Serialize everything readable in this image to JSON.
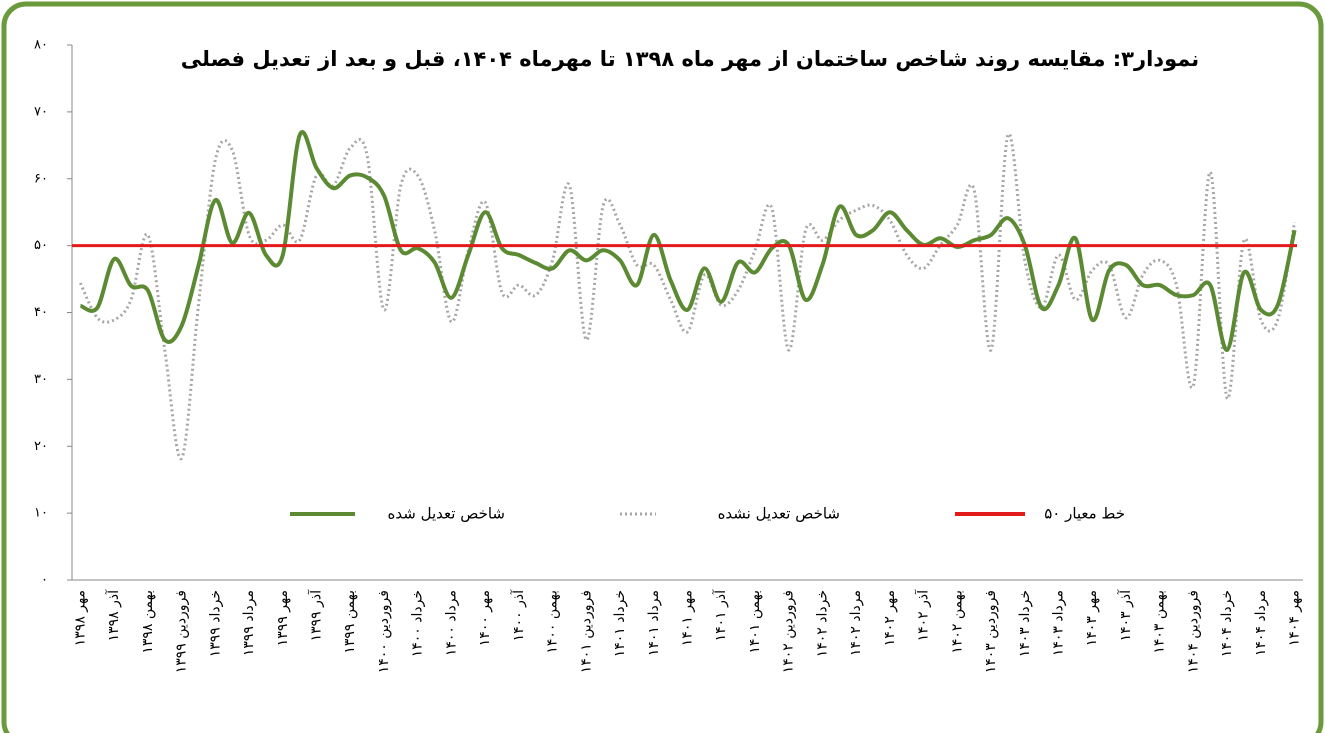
{
  "chart_data": {
    "type": "line",
    "title": "نمودار۳: مقایسه روند شاخص ساختمان از مهر ماه ۱۳۹۸ تا مهرماه ۱۴۰۴، قبل و بعد از تعدیل فصلی",
    "categories": [
      "مهر ۱۳۹۸",
      null,
      "آذر ۱۳۹۸",
      null,
      "بهمن ۱۳۹۸",
      null,
      "فروردین ۱۳۹۹",
      null,
      "خرداد ۱۳۹۹",
      null,
      "مرداد ۱۳۹۹",
      null,
      "مهر ۱۳۹۹",
      null,
      "آذر ۱۳۹۹",
      null,
      "بهمن ۱۳۹۹",
      null,
      "فروردین ۱۴۰۰",
      null,
      "خرداد ۱۴۰۰",
      null,
      "مرداد ۱۴۰۰",
      null,
      "مهر ۱۴۰۰",
      null,
      "آذر ۱۴۰۰",
      null,
      "بهمن ۱۴۰۰",
      null,
      "فروردین ۱۴۰۱",
      null,
      "خرداد ۱۴۰۱",
      null,
      "مرداد ۱۴۰۱",
      null,
      "مهر ۱۴۰۱",
      null,
      "آذر ۱۴۰۱",
      null,
      "بهمن ۱۴۰۱",
      null,
      "فروردین ۱۴۰۲",
      null,
      "خرداد ۱۴۰۲",
      null,
      "مرداد ۱۴۰۲",
      null,
      "مهر ۱۴۰۲",
      null,
      "آذر ۱۴۰۲",
      null,
      "بهمن ۱۴۰۲",
      null,
      "فروردین ۱۴۰۳",
      null,
      "خرداد ۱۴۰۳",
      null,
      "مرداد ۱۴۰۳",
      null,
      "مهر ۱۴۰۳",
      null,
      "آذر ۱۴۰۳",
      null,
      "بهمن ۱۴۰۳",
      null,
      "فروردین ۱۴۰۴",
      null,
      "خرداد ۱۴۰۴",
      null,
      "مرداد ۱۴۰۴",
      null,
      "مهر ۱۴۰۴"
    ],
    "series": [
      {
        "name": "شاخص تعدیل شده",
        "color": "#5b8a32",
        "style": "solid",
        "values": [
          41,
          40.7,
          48,
          44,
          43.3,
          35.9,
          38,
          47,
          56.8,
          50.4,
          54.9,
          48.6,
          48.6,
          66.5,
          61.6,
          58.6,
          60.5,
          60.2,
          57.5,
          49.3,
          49.6,
          47.5,
          42.2,
          48.6,
          55,
          49.6,
          48.6,
          47.4,
          46.6,
          49.3,
          47.8,
          49.3,
          47.8,
          44.1,
          51.6,
          44.8,
          40.4,
          46.6,
          41.6,
          47.5,
          46,
          49.6,
          50.1,
          41.9,
          47.1,
          55.8,
          51.6,
          52.3,
          55,
          52.3,
          50.1,
          51.1,
          49.8,
          50.8,
          51.6,
          54.1,
          50.1,
          40.7,
          44.1,
          51.1,
          38.9,
          46.3,
          47.1,
          44.1,
          44.1,
          42.6,
          42.6,
          44.1,
          34.4,
          46,
          40.4,
          41.1,
          52.3
        ]
      },
      {
        "name": "شاخص تعدیل نشده",
        "color": "#a6a6a6",
        "style": "dotted",
        "values": [
          44.4,
          39.2,
          38.9,
          41.9,
          51.6,
          34.4,
          18.2,
          41.1,
          62.8,
          64.3,
          51.6,
          50.8,
          53.1,
          50.8,
          60.5,
          59,
          64.6,
          63.5,
          40.4,
          59,
          60.5,
          52.3,
          38.6,
          49.3,
          56.5,
          43,
          44.1,
          42.6,
          47.8,
          59,
          35.9,
          56,
          53.1,
          47.1,
          47.1,
          41.9,
          37.1,
          45.6,
          41.1,
          43.3,
          49.3,
          55.6,
          34.4,
          52.3,
          50.8,
          53.8,
          55.3,
          56,
          53.8,
          48.6,
          46.6,
          50.1,
          53.1,
          58.3,
          34.4,
          66.5,
          47.8,
          40.7,
          48.6,
          41.9,
          46.3,
          47.1,
          39.2,
          45.6,
          47.8,
          44.1,
          29.1,
          61,
          27.2,
          50.8,
          38.9,
          38.9,
          53.5
        ]
      }
    ],
    "reference_line": {
      "name": "خط معیار ۵۰",
      "value": 50,
      "color": "#e31a1c"
    },
    "ylim": [
      0,
      80
    ],
    "yticks": [
      {
        "value": 0,
        "label": "۰"
      },
      {
        "value": 10,
        "label": "۱۰"
      },
      {
        "value": 20,
        "label": "۲۰"
      },
      {
        "value": 30,
        "label": "۳۰"
      },
      {
        "value": 40,
        "label": "۴۰"
      },
      {
        "value": 50,
        "label": "۵۰"
      },
      {
        "value": 60,
        "label": "۶۰"
      },
      {
        "value": 70,
        "label": "۷۰"
      },
      {
        "value": 80,
        "label": "۸۰"
      }
    ],
    "grid": false
  }
}
